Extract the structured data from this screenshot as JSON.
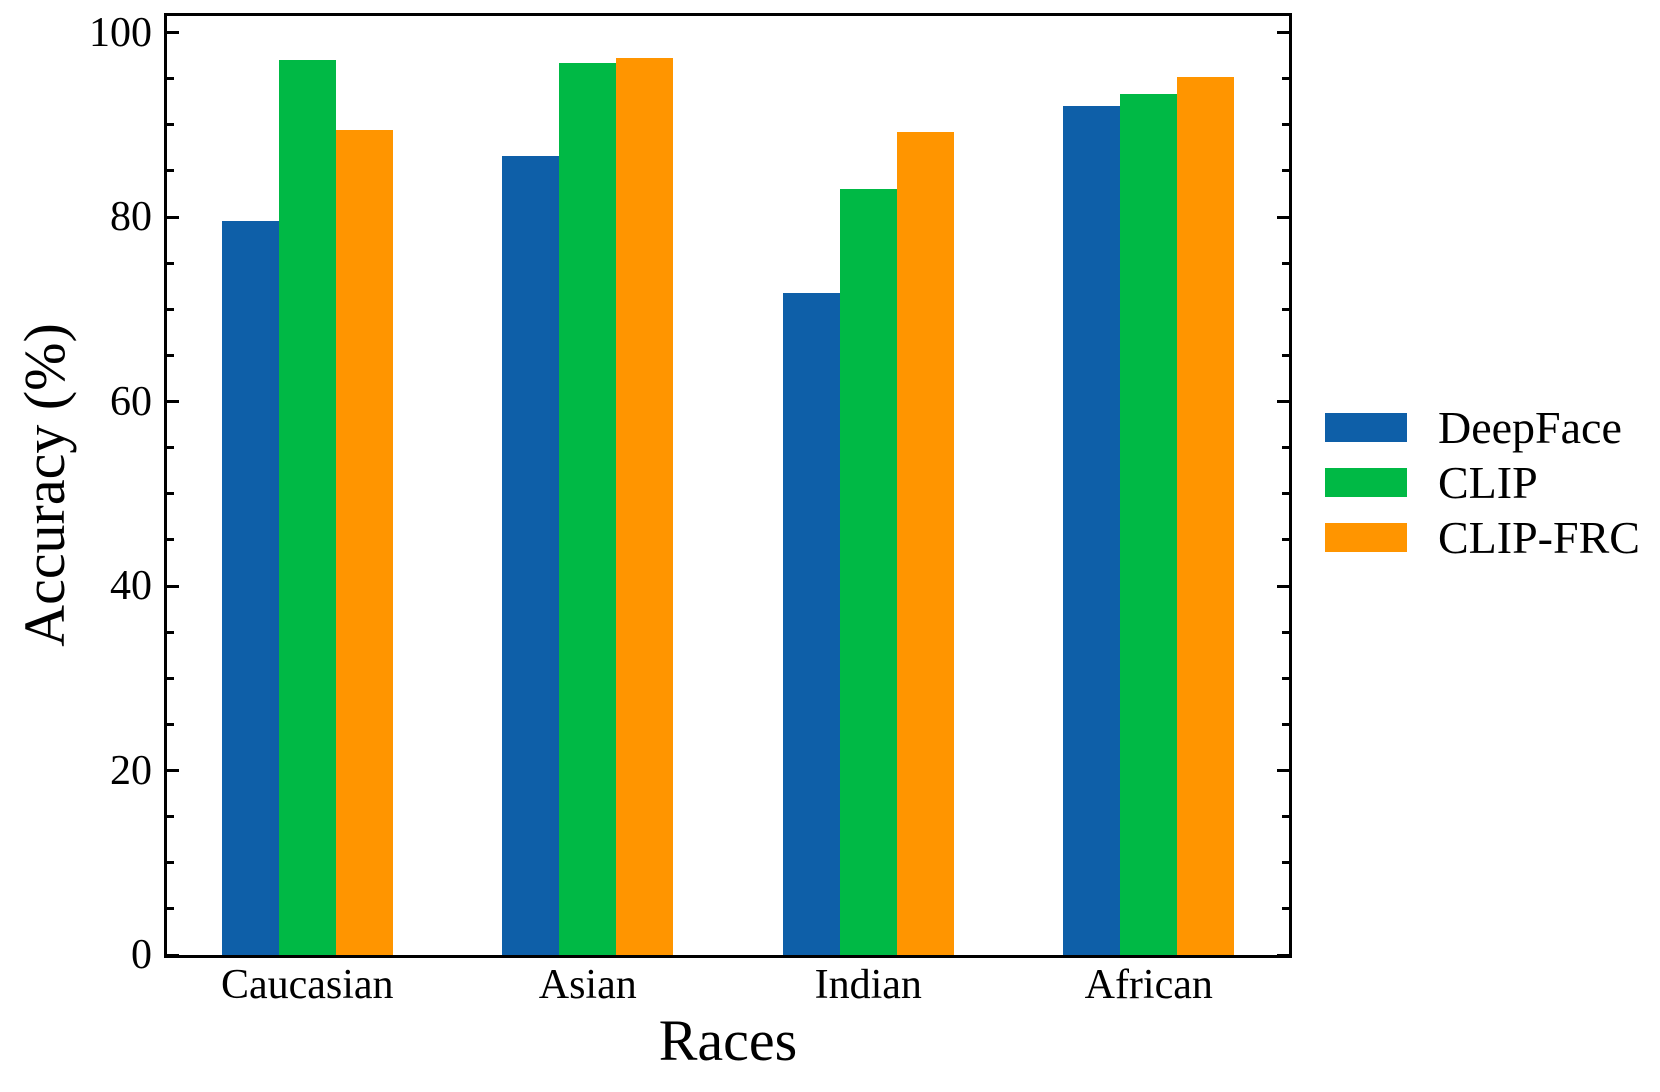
{
  "figure": {
    "background": "#ffffff",
    "text_color": "#000000",
    "spine_color": "#000000"
  },
  "chart_data": {
    "type": "bar",
    "title": "",
    "xlabel": "Races",
    "ylabel": "Accuracy (%)",
    "categories": [
      "Caucasian",
      "Asian",
      "Indian",
      "African"
    ],
    "series": [
      {
        "name": "DeepFace",
        "color": "#0E5FA8",
        "values": [
          79.6,
          86.6,
          71.8,
          92.0
        ]
      },
      {
        "name": "CLIP",
        "color": "#00B945",
        "values": [
          97.0,
          96.7,
          83.1,
          93.3
        ]
      },
      {
        "name": "CLIP-FRC",
        "color": "#FF9500",
        "values": [
          89.4,
          97.2,
          89.2,
          95.2
        ]
      }
    ],
    "ylim": [
      0,
      101.8
    ],
    "yticks_major": [
      0,
      20,
      40,
      60,
      80,
      100
    ],
    "ytick_minor_step": 5,
    "grid": false,
    "legend_position": "right-outside"
  }
}
